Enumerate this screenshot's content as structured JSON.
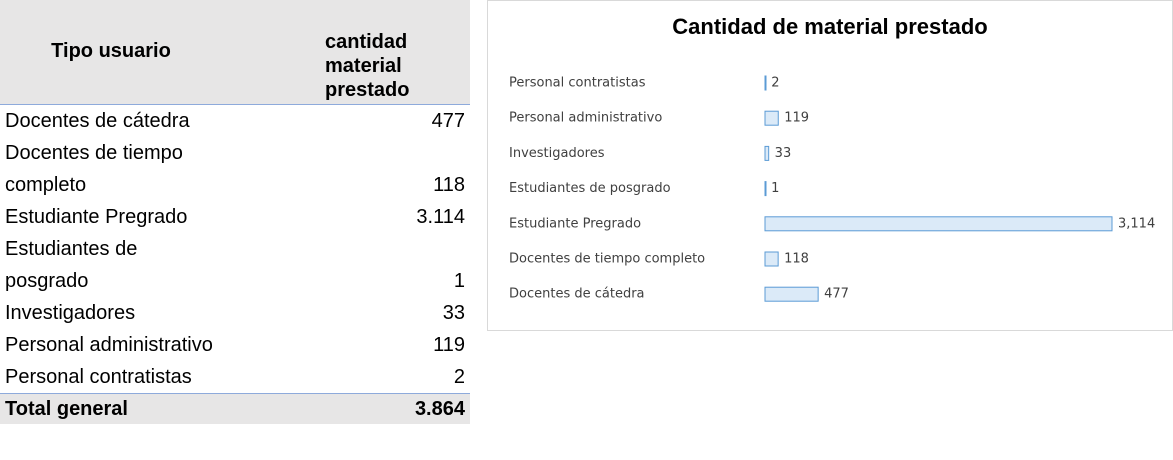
{
  "table": {
    "header": [
      "Tipo usuario",
      "cantidad material prestado"
    ],
    "rows": [
      [
        "Docentes de cátedra",
        "477"
      ],
      [
        "Docentes de tiempo completo",
        "118"
      ],
      [
        "Estudiante Pregrado",
        "3.114"
      ],
      [
        "Estudiantes de posgrado",
        "1"
      ],
      [
        "Investigadores",
        "33"
      ],
      [
        "Personal administrativo",
        "119"
      ],
      [
        "Personal contratistas",
        "2"
      ]
    ],
    "total": [
      "Total general",
      "3.864"
    ]
  },
  "chart_data": {
    "type": "bar",
    "orientation": "horizontal",
    "title": "Cantidad de material prestado",
    "categories": [
      "Personal contratistas",
      "Personal administrativo",
      "Investigadores",
      "Estudiantes de posgrado",
      "Estudiante Pregrado",
      "Docentes de tiempo completo",
      "Docentes de cátedra"
    ],
    "values": [
      2,
      119,
      33,
      1,
      3114,
      118,
      477
    ],
    "value_labels": [
      "2",
      "119",
      "33",
      "1",
      "3,114",
      "118",
      "477"
    ],
    "color": "#dbeaf8",
    "edge_color": "#5b9bd5"
  }
}
